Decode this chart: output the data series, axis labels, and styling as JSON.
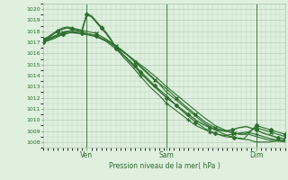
{
  "background_color": "#dff0df",
  "grid_color": "#adc8ad",
  "line_color": "#2d6e2d",
  "marker_color": "#2d6e2d",
  "xlabel_text": "Pression niveau de la mer( hPa )",
  "ylim": [
    1007.5,
    1020.5
  ],
  "xlim": [
    0,
    1.0
  ],
  "yticks": [
    1008,
    1009,
    1010,
    1011,
    1012,
    1013,
    1014,
    1015,
    1016,
    1017,
    1018,
    1019,
    1020
  ],
  "xtick_positions": [
    0.18,
    0.51,
    0.88
  ],
  "xtick_labels": [
    "Ven",
    "Sam",
    "Dim"
  ],
  "vline_positions": [
    0.18,
    0.51,
    0.88
  ],
  "series": [
    {
      "x": [
        0.0,
        0.02,
        0.04,
        0.06,
        0.08,
        0.1,
        0.12,
        0.14,
        0.16,
        0.18,
        0.2,
        0.22,
        0.24,
        0.26,
        0.28,
        0.3,
        0.33,
        0.36,
        0.4,
        0.44,
        0.48,
        0.51,
        0.54,
        0.57,
        0.6,
        0.63,
        0.66,
        0.69,
        0.72,
        0.75,
        0.78,
        0.81,
        0.84,
        0.88,
        0.91,
        0.94,
        0.97,
        1.0
      ],
      "y": [
        1017.2,
        1017.4,
        1017.7,
        1018.0,
        1018.2,
        1018.3,
        1018.2,
        1018.1,
        1018.0,
        1019.5,
        1019.3,
        1018.8,
        1018.3,
        1017.8,
        1017.2,
        1016.6,
        1015.9,
        1015.2,
        1014.3,
        1013.4,
        1012.6,
        1012.0,
        1011.5,
        1011.0,
        1010.5,
        1010.0,
        1009.6,
        1009.3,
        1009.1,
        1009.0,
        1009.1,
        1009.3,
        1009.4,
        1009.1,
        1008.8,
        1008.6,
        1008.4,
        1008.3
      ],
      "marker": "D",
      "markersize": 2,
      "linewidth": 1.0,
      "markevery": 3
    },
    {
      "x": [
        0.0,
        0.02,
        0.04,
        0.06,
        0.08,
        0.1,
        0.12,
        0.14,
        0.16,
        0.18,
        0.2,
        0.22,
        0.24,
        0.26,
        0.28,
        0.3,
        0.33,
        0.36,
        0.4,
        0.44,
        0.48,
        0.51,
        0.54,
        0.57,
        0.6,
        0.63,
        0.66,
        0.69,
        0.72,
        0.75,
        0.78,
        0.81,
        0.84,
        0.88,
        0.91,
        0.94,
        0.97,
        1.0
      ],
      "y": [
        1017.3,
        1017.5,
        1017.8,
        1018.1,
        1018.3,
        1018.4,
        1018.3,
        1018.2,
        1018.1,
        1019.6,
        1019.4,
        1018.9,
        1018.4,
        1017.9,
        1017.3,
        1016.5,
        1015.7,
        1015.0,
        1014.0,
        1013.0,
        1012.2,
        1011.5,
        1011.0,
        1010.5,
        1010.0,
        1009.5,
        1009.2,
        1008.9,
        1008.7,
        1008.6,
        1008.7,
        1008.8,
        1008.9,
        1008.7,
        1008.5,
        1008.3,
        1008.2,
        1008.1
      ],
      "marker": "+",
      "markersize": 3,
      "linewidth": 0.8,
      "markevery": 3
    },
    {
      "x": [
        0.0,
        0.05,
        0.1,
        0.15,
        0.18,
        0.22,
        0.27,
        0.32,
        0.37,
        0.42,
        0.47,
        0.51,
        0.56,
        0.61,
        0.66,
        0.71,
        0.76,
        0.81,
        0.85,
        0.88,
        0.93,
        0.97,
        1.0
      ],
      "y": [
        1017.0,
        1017.5,
        1017.9,
        1017.8,
        1017.7,
        1017.5,
        1017.0,
        1016.3,
        1015.5,
        1014.7,
        1013.8,
        1013.0,
        1012.1,
        1011.2,
        1010.3,
        1009.5,
        1009.0,
        1008.7,
        1008.7,
        1008.5,
        1008.2,
        1008.1,
        1008.0
      ],
      "marker": null,
      "markersize": 0,
      "linewidth": 0.8,
      "markevery": 1
    },
    {
      "x": [
        0.0,
        0.05,
        0.1,
        0.15,
        0.18,
        0.22,
        0.27,
        0.32,
        0.37,
        0.42,
        0.47,
        0.51,
        0.56,
        0.61,
        0.66,
        0.71,
        0.76,
        0.81,
        0.85,
        0.88,
        0.93,
        0.97,
        1.0
      ],
      "y": [
        1017.1,
        1017.6,
        1018.0,
        1017.9,
        1017.8,
        1017.6,
        1017.1,
        1016.4,
        1015.5,
        1014.5,
        1013.5,
        1012.5,
        1011.6,
        1010.7,
        1009.8,
        1009.1,
        1008.6,
        1008.3,
        1008.2,
        1008.0,
        1008.0,
        1008.1,
        1008.2
      ],
      "marker": null,
      "markersize": 0,
      "linewidth": 0.8,
      "markevery": 1
    },
    {
      "x": [
        0.0,
        0.04,
        0.08,
        0.12,
        0.16,
        0.18,
        0.22,
        0.26,
        0.3,
        0.34,
        0.38,
        0.42,
        0.46,
        0.51,
        0.55,
        0.59,
        0.63,
        0.67,
        0.71,
        0.75,
        0.79,
        0.83,
        0.88,
        0.91,
        0.94,
        0.97,
        1.0
      ],
      "y": [
        1017.2,
        1017.5,
        1017.9,
        1018.1,
        1018.0,
        1018.0,
        1017.8,
        1017.3,
        1016.7,
        1016.0,
        1015.2,
        1014.4,
        1013.6,
        1012.8,
        1012.0,
        1011.2,
        1010.5,
        1009.8,
        1009.3,
        1009.0,
        1008.8,
        1008.7,
        1009.3,
        1009.1,
        1008.9,
        1008.7,
        1008.5
      ],
      "marker": "x",
      "markersize": 2.5,
      "linewidth": 0.8,
      "markevery": 2
    },
    {
      "x": [
        0.0,
        0.04,
        0.08,
        0.12,
        0.16,
        0.18,
        0.22,
        0.26,
        0.3,
        0.34,
        0.38,
        0.42,
        0.46,
        0.51,
        0.55,
        0.59,
        0.63,
        0.67,
        0.71,
        0.75,
        0.79,
        0.83,
        0.88,
        0.91,
        0.94,
        0.97,
        1.0
      ],
      "y": [
        1017.0,
        1017.3,
        1017.7,
        1017.9,
        1017.8,
        1017.8,
        1017.6,
        1017.1,
        1016.4,
        1015.7,
        1014.9,
        1014.0,
        1013.1,
        1012.2,
        1011.3,
        1010.5,
        1009.8,
        1009.2,
        1008.8,
        1008.5,
        1008.4,
        1008.3,
        1009.5,
        1009.3,
        1009.1,
        1008.9,
        1008.7
      ],
      "marker": "D",
      "markersize": 2,
      "linewidth": 0.8,
      "markevery": 2
    }
  ]
}
